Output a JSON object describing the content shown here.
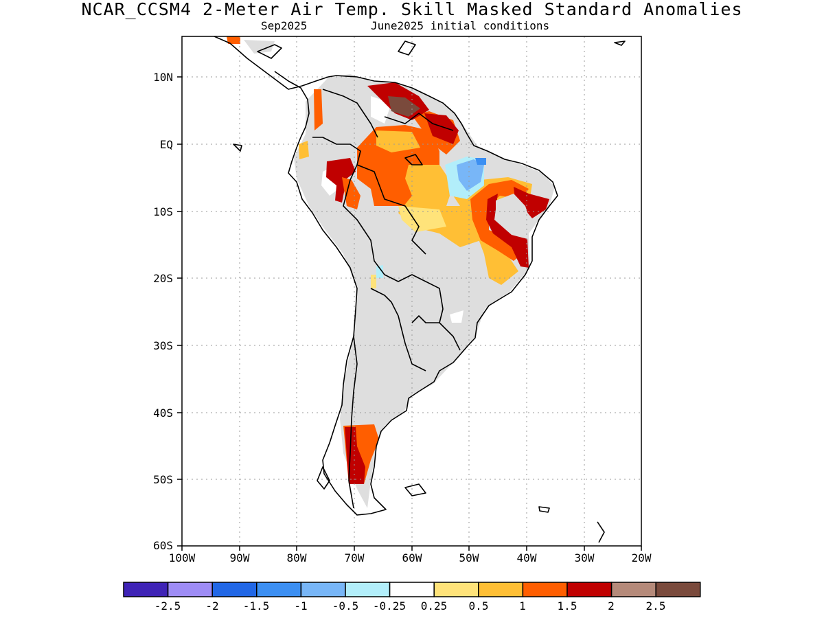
{
  "title": "NCAR_CCSM4 2-Meter Air Temp. Skill Masked Standard Anomalies",
  "subtitle_left": "Sep2025",
  "subtitle_right": "June2025 initial conditions",
  "lat_ticks": [
    "10N",
    "EQ",
    "10S",
    "20S",
    "30S",
    "40S",
    "50S",
    "60S"
  ],
  "lon_ticks": [
    "100W",
    "90W",
    "80W",
    "70W",
    "60W",
    "50W",
    "40W",
    "30W",
    "20W"
  ],
  "colorbar": {
    "colors": [
      "#3f23b6",
      "#9e8cf5",
      "#2167e6",
      "#3c8ff2",
      "#78b6f7",
      "#b2eefa",
      "#ffffff",
      "#ffe37a",
      "#ffbf35",
      "#ff5e00",
      "#c00000",
      "#b58a7a",
      "#7a4a3c"
    ],
    "labels": [
      "-2.5",
      "-2",
      "-1.5",
      "-1",
      "-0.5",
      "-0.25",
      "0.25",
      "0.5",
      "1",
      "1.5",
      "2",
      "2.5"
    ]
  },
  "colors": {
    "masked_land": "#dedede",
    "coastline": "#000000",
    "grid": "#9a9a9a"
  }
}
